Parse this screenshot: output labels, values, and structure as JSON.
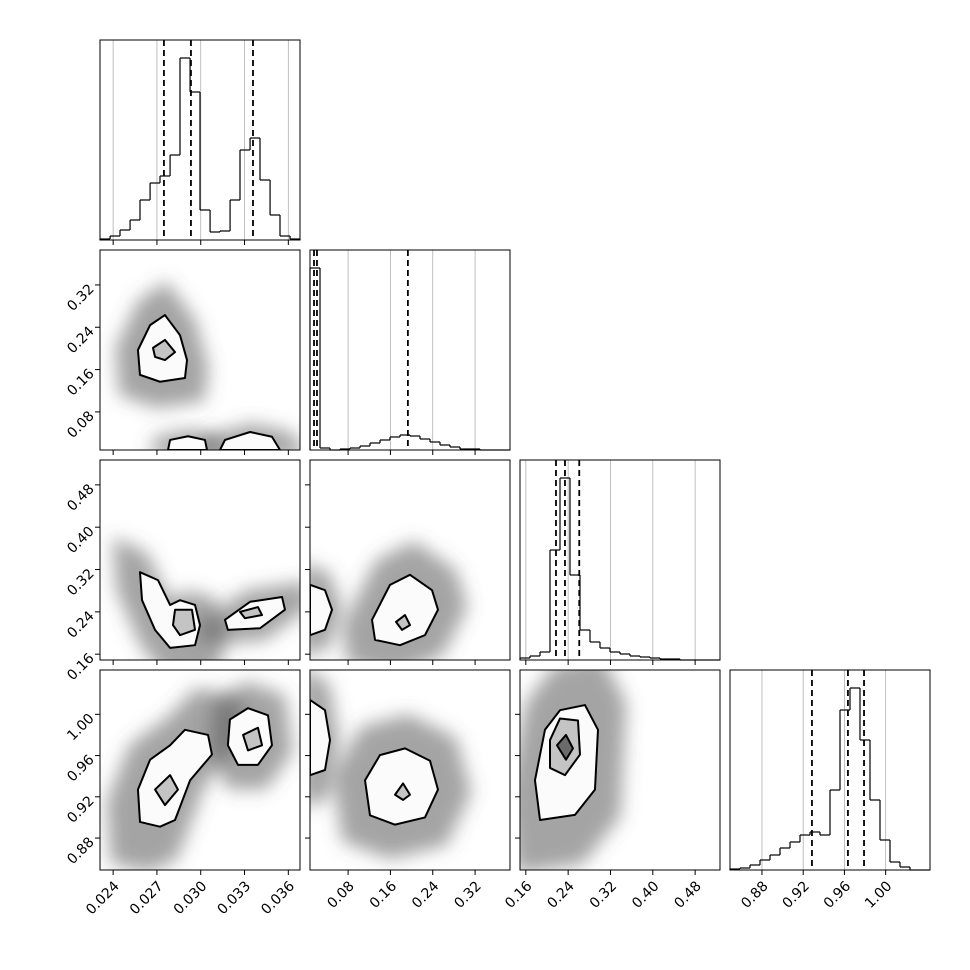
{
  "chart_data": {
    "type": "corner",
    "grid": true,
    "params": [
      {
        "lim": [
          0.0231,
          0.0368
        ],
        "ticks": [
          0.024,
          0.027,
          {
            "value": 0.03,
            "label": "0.030"
          },
          0.033,
          0.036
        ],
        "quantiles": [
          0.02748,
          0.02933,
          0.03358
        ],
        "hist": {
          "ylim": [
            0,
            200
          ],
          "bins": [
            0.0231,
            0.02379,
            0.02447,
            0.02516,
            0.02584,
            0.02653,
            0.02721,
            0.0279,
            0.02858,
            0.02927,
            0.02995,
            0.03064,
            0.03132,
            0.03201,
            0.03269,
            0.03338,
            0.03406,
            0.03475,
            0.03543,
            0.03612,
            0.0368
          ],
          "counts": [
            1,
            4,
            10,
            20,
            40,
            57,
            64,
            85,
            182,
            148,
            30,
            8,
            9,
            40,
            90,
            102,
            60,
            25,
            4,
            1
          ]
        }
      },
      {
        "lim": [
          0.008,
          0.386
        ],
        "ticks": [
          0.08,
          0.16,
          0.24,
          0.32
        ],
        "quantiles": [
          0.0156,
          0.0212,
          0.193
        ],
        "hist": {
          "ylim": [
            0,
            200
          ],
          "bins": [
            0.008,
            0.0269,
            0.0458,
            0.0647,
            0.0836,
            0.1025,
            0.1214,
            0.1403,
            0.1592,
            0.1781,
            0.197,
            0.2159,
            0.2348,
            0.2537,
            0.2726,
            0.2915,
            0.3104,
            0.3293,
            0.3482,
            0.3671,
            0.386
          ],
          "counts": [
            182,
            2,
            0,
            1,
            2,
            4,
            7,
            10,
            13,
            15,
            14,
            11,
            8,
            5,
            3,
            1,
            1,
            0,
            0,
            0
          ]
        }
      },
      {
        "lim": [
          0.149,
          0.527
        ],
        "ticks": [
          0.16,
          0.24,
          0.32,
          {
            "value": 0.4,
            "label": "0.40"
          },
          0.48
        ],
        "quantiles": [
          0.217,
          0.234,
          0.261
        ],
        "hist": {
          "ylim": [
            0,
            200
          ],
          "bins": [
            0.149,
            0.1679,
            0.1868,
            0.2057,
            0.2246,
            0.2435,
            0.2624,
            0.2813,
            0.3002,
            0.3191,
            0.338,
            0.3569,
            0.3758,
            0.3947,
            0.4136,
            0.4325,
            0.4514,
            0.4703,
            0.4892,
            0.5081,
            0.527
          ],
          "counts": [
            2,
            4,
            8,
            110,
            182,
            85,
            30,
            18,
            12,
            8,
            6,
            4,
            3,
            2,
            1,
            1,
            0,
            0,
            0,
            0
          ]
        }
      },
      {
        "lim": [
          0.849,
          1.043
        ],
        "ticks": [
          0.88,
          0.92,
          0.96,
          {
            "value": 1.0,
            "label": "1.00"
          }
        ],
        "quantiles": [
          0.9285,
          0.9634,
          0.979
        ],
        "hist": {
          "ylim": [
            0,
            200
          ],
          "bins": [
            0.849,
            0.8587,
            0.8684,
            0.8781,
            0.8878,
            0.8975,
            0.9072,
            0.9169,
            0.9266,
            0.9363,
            0.946,
            0.9557,
            0.9654,
            0.9751,
            0.9848,
            0.9945,
            1.0042,
            1.0139,
            1.0236,
            1.0333,
            1.043
          ],
          "counts": [
            1,
            2,
            5,
            10,
            15,
            22,
            28,
            35,
            38,
            35,
            80,
            160,
            182,
            130,
            70,
            30,
            8,
            3,
            0,
            0
          ]
        }
      }
    ],
    "panels": [
      {
        "x": 0,
        "y": 1,
        "clusters": [
          [
            {
              "x": [
                0.0257,
                0.02653,
                0.02755,
                0.02858,
                0.02906,
                0.02892,
                0.02721,
                0.02584
              ],
              "y": [
                0.197,
                0.244,
                0.263,
                0.225,
                0.178,
                0.144,
                0.137,
                0.15
              ]
            },
            {
              "x": [
                0.02673,
                0.02755,
                0.02824,
                0.02755,
                0.02687
              ],
              "y": [
                0.201,
                0.216,
                0.193,
                0.178,
                0.184
              ]
            }
          ],
          [
            {
              "x": [
                0.02776,
                0.0279,
                0.02913,
                0.03029,
                0.03043
              ],
              "y": [
                0.008,
                0.027,
                0.034,
                0.027,
                0.008
              ]
            }
          ],
          [
            {
              "x": [
                0.03132,
                0.03166,
                0.03338,
                0.03488,
                0.03543
              ],
              "y": [
                0.008,
                0.027,
                0.042,
                0.033,
                0.008
              ]
            }
          ]
        ]
      },
      {
        "x": 0,
        "y": 2,
        "clusters": [
          [
            {
              "x": [
                0.02584,
                0.02707,
                0.0279,
                0.02858,
                0.02961,
                0.02995,
                0.02961,
                0.0279,
                0.02687,
                0.02598
              ],
              "y": [
                0.315,
                0.3,
                0.253,
                0.262,
                0.253,
                0.215,
                0.177,
                0.172,
                0.206,
                0.262
              ]
            },
            {
              "x": [
                0.02824,
                0.0294,
                0.02961,
                0.02858,
                0.0281
              ],
              "y": [
                0.244,
                0.244,
                0.206,
                0.196,
                0.215
              ]
            }
          ],
          [
            {
              "x": [
                0.03166,
                0.03338,
                0.03557,
                0.03577,
                0.03406,
                0.03186
              ],
              "y": [
                0.225,
                0.259,
                0.268,
                0.244,
                0.209,
                0.206
              ]
            },
            {
              "x": [
                0.03269,
                0.03392,
                0.0342,
                0.03303
              ],
              "y": [
                0.24,
                0.249,
                0.234,
                0.228
              ]
            }
          ]
        ]
      },
      {
        "x": 1,
        "y": 2,
        "clusters": [
          [
            {
              "x": [
                0.008,
                0.03635,
                0.0496,
                0.03635,
                0.008
              ],
              "y": [
                0.291,
                0.281,
                0.244,
                0.206,
                0.196
              ]
            }
          ],
          [
            {
              "x": [
                0.1252,
                0.1592,
                0.197,
                0.2386,
                0.2499,
                0.2253,
                0.1781,
                0.1309
              ],
              "y": [
                0.225,
                0.291,
                0.31,
                0.281,
                0.244,
                0.196,
                0.177,
                0.187
              ]
            },
            {
              "x": [
                0.1705,
                0.1875,
                0.197,
                0.1819
              ],
              "y": [
                0.221,
                0.234,
                0.215,
                0.206
              ]
            }
          ]
        ]
      },
      {
        "x": 0,
        "y": 3,
        "clusters": [
          [
            {
              "x": [
                0.0257,
                0.02653,
                0.0279,
                0.02892,
                0.0305,
                0.03077,
                0.02927,
                0.02824,
                0.02721,
                0.02584
              ],
              "y": [
                0.927,
                0.956,
                0.97,
                0.985,
                0.98,
                0.961,
                0.936,
                0.8975,
                0.891,
                0.8956
              ]
            },
            {
              "x": [
                0.02687,
                0.0279,
                0.02844,
                0.02755
              ],
              "y": [
                0.927,
                0.941,
                0.927,
                0.912
              ]
            }
          ],
          [
            {
              "x": [
                0.032,
                0.03324,
                0.03461,
                0.03488,
                0.03392,
                0.03255,
                0.03186
              ],
              "y": [
                0.995,
                1.006,
                0.999,
                0.97,
                0.951,
                0.951,
                0.97
              ]
            },
            {
              "x": [
                0.0329,
                0.03392,
                0.0342,
                0.03324
              ],
              "y": [
                0.98,
                0.987,
                0.97,
                0.965
              ]
            }
          ]
        ]
      },
      {
        "x": 1,
        "y": 3,
        "clusters": [
          [
            {
              "x": [
                0.008,
                0.03635,
                0.0458,
                0.03635,
                0.008
              ],
              "y": [
                1.014,
                1.004,
                0.975,
                0.946,
                0.941
              ]
            }
          ],
          [
            {
              "x": [
                0.112,
                0.1403,
                0.1876,
                0.2348,
                0.2499,
                0.2253,
                0.1687,
                0.1214
              ],
              "y": [
                0.936,
                0.9605,
                0.967,
                0.955,
                0.927,
                0.9,
                0.893,
                0.902
              ]
            },
            {
              "x": [
                0.1687,
                0.1838,
                0.197,
                0.1838
              ],
              "y": [
                0.922,
                0.933,
                0.922,
                0.917
              ]
            }
          ]
        ]
      },
      {
        "x": 2,
        "y": 3,
        "clusters": [
          [
            {
              "x": [
                0.1773,
                0.1962,
                0.2246,
                0.2718,
                0.2964,
                0.2907,
                0.2529,
                0.1868
              ],
              "y": [
                0.936,
                0.985,
                1.004,
                1.009,
                0.985,
                0.927,
                0.9025,
                0.8975
              ]
            },
            {
              "x": [
                0.2057,
                0.2246,
                0.2586,
                0.2624,
                0.234,
                0.2057
              ],
              "y": [
                0.975,
                0.996,
                0.994,
                0.961,
                0.941,
                0.948
              ]
            },
            {
              "x": [
                0.2189,
                0.2359,
                0.2491,
                0.2359
              ],
              "y": [
                0.97,
                0.98,
                0.967,
                0.956
              ]
            }
          ]
        ]
      }
    ]
  }
}
